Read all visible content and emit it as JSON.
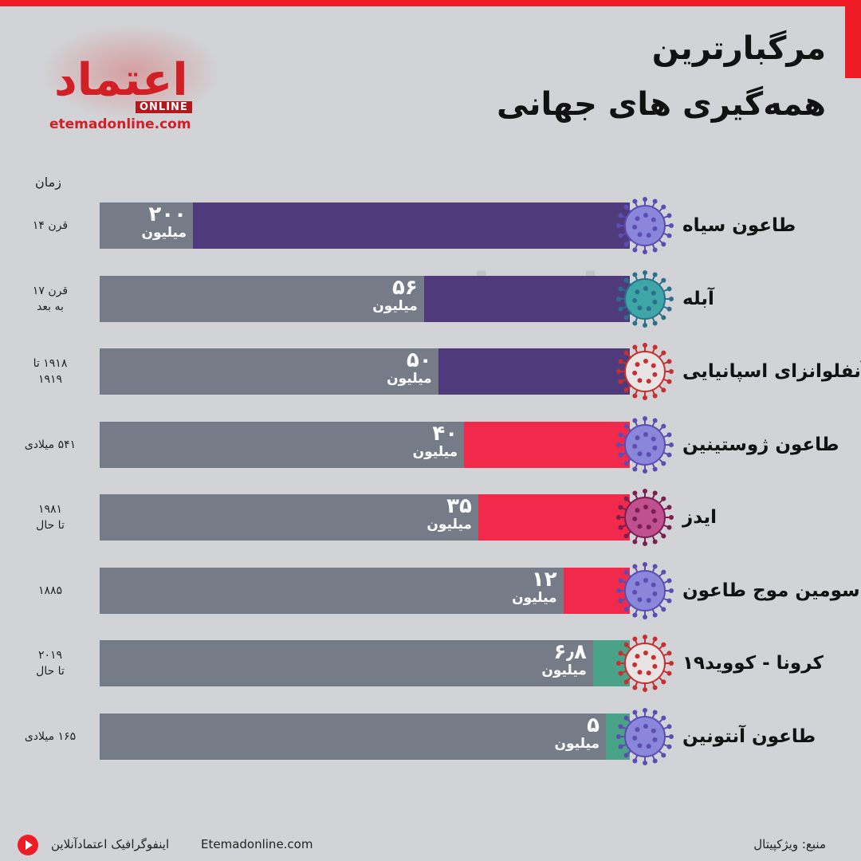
{
  "header": {
    "title_line1": "مرگبارترین",
    "title_line2": "همه‌گیری های جهانی"
  },
  "logo": {
    "wordmark": "اعتماد",
    "badge": "ONLINE",
    "url": "etemadonline.com"
  },
  "colors": {
    "accent": "#ee1c25",
    "track": "#767c87",
    "purple": "#4f3a7b",
    "red": "#f1294a",
    "green": "#4aa389",
    "background": "#d2d3d6"
  },
  "time_header": "زمان",
  "unit_label": "میلیون",
  "chart_data": {
    "type": "bar",
    "orientation": "horizontal",
    "unit": "میلیون",
    "categories": [
      "طاعون سیاه",
      "آبله",
      "آنفلوانزای اسپانیایی",
      "طاعون ژوستینین",
      "ایدز",
      "سومین موج طاعون",
      "کرونا - کووید۱۹",
      "طاعون آنتونین"
    ],
    "values": [
      200,
      56,
      50,
      40,
      35,
      12,
      6.8,
      5
    ],
    "value_labels": [
      "۲۰۰",
      "۵۶",
      "۵۰",
      "۴۰",
      "۳۵",
      "۱۲",
      "۶٫۸",
      "۵"
    ],
    "time_periods": [
      "قرن ۱۴",
      "قرن ۱۷\nبه بعد",
      "۱۹۱۸ تا\n۱۹۱۹",
      "۵۴۱ میلادی",
      "۱۹۸۱\nتا حال",
      "۱۸۸۵",
      "۲۰۱۹\nتا حال",
      "۱۶۵ میلادی"
    ],
    "bar_colors": [
      "#4f3a7b",
      "#4f3a7b",
      "#4f3a7b",
      "#f1294a",
      "#f1294a",
      "#f1294a",
      "#4aa389",
      "#4aa389"
    ],
    "virus_icons": [
      "virus-purple-icon",
      "virus-teal-icon",
      "virus-red-icon",
      "virus-purple-icon",
      "virus-pink-icon",
      "virus-purple-icon",
      "virus-red-icon",
      "virus-purple-icon"
    ]
  },
  "footer": {
    "source": "منبع: ویژکپیتال",
    "site": "Etemadonline.com",
    "credit": "اینفوگرافیک اعتمادآنلاین"
  }
}
